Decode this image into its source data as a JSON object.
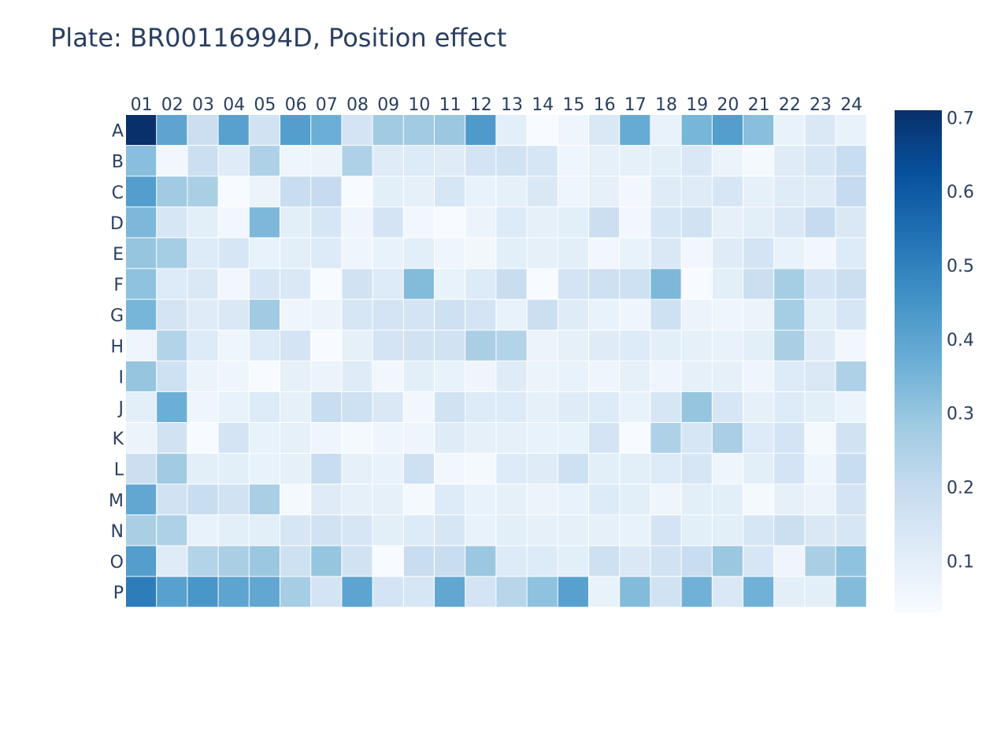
{
  "chart_data": {
    "type": "heatmap",
    "title": "Plate: BR00116994D, Position effect",
    "xlabel": "",
    "ylabel": "",
    "columns": [
      "01",
      "02",
      "03",
      "04",
      "05",
      "06",
      "07",
      "08",
      "09",
      "10",
      "11",
      "12",
      "13",
      "14",
      "15",
      "16",
      "17",
      "18",
      "19",
      "20",
      "21",
      "22",
      "23",
      "24"
    ],
    "rows": [
      "A",
      "B",
      "C",
      "D",
      "E",
      "F",
      "G",
      "H",
      "I",
      "J",
      "K",
      "L",
      "M",
      "N",
      "O",
      "P"
    ],
    "values": [
      [
        0.71,
        0.4,
        0.18,
        0.41,
        0.16,
        0.42,
        0.37,
        0.15,
        0.28,
        0.28,
        0.29,
        0.43,
        0.1,
        0.03,
        0.06,
        0.13,
        0.38,
        0.08,
        0.35,
        0.42,
        0.32,
        0.08,
        0.13,
        0.08
      ],
      [
        0.32,
        0.05,
        0.18,
        0.11,
        0.25,
        0.06,
        0.07,
        0.25,
        0.11,
        0.12,
        0.11,
        0.15,
        0.16,
        0.14,
        0.06,
        0.09,
        0.09,
        0.1,
        0.13,
        0.07,
        0.04,
        0.11,
        0.14,
        0.19
      ],
      [
        0.42,
        0.28,
        0.26,
        0.03,
        0.07,
        0.19,
        0.2,
        0.03,
        0.1,
        0.09,
        0.14,
        0.08,
        0.09,
        0.13,
        0.06,
        0.09,
        0.05,
        0.11,
        0.11,
        0.14,
        0.09,
        0.11,
        0.11,
        0.2
      ],
      [
        0.34,
        0.14,
        0.1,
        0.05,
        0.34,
        0.1,
        0.14,
        0.06,
        0.15,
        0.05,
        0.03,
        0.07,
        0.12,
        0.09,
        0.1,
        0.18,
        0.05,
        0.14,
        0.16,
        0.09,
        0.1,
        0.13,
        0.2,
        0.13
      ],
      [
        0.3,
        0.27,
        0.12,
        0.14,
        0.08,
        0.1,
        0.12,
        0.06,
        0.08,
        0.1,
        0.06,
        0.05,
        0.1,
        0.09,
        0.1,
        0.05,
        0.08,
        0.13,
        0.05,
        0.11,
        0.15,
        0.08,
        0.05,
        0.12
      ],
      [
        0.31,
        0.12,
        0.13,
        0.05,
        0.14,
        0.13,
        0.03,
        0.16,
        0.12,
        0.33,
        0.08,
        0.12,
        0.19,
        0.03,
        0.15,
        0.17,
        0.17,
        0.34,
        0.03,
        0.1,
        0.18,
        0.27,
        0.15,
        0.18
      ],
      [
        0.35,
        0.15,
        0.11,
        0.13,
        0.28,
        0.06,
        0.07,
        0.14,
        0.15,
        0.15,
        0.17,
        0.15,
        0.08,
        0.18,
        0.11,
        0.08,
        0.06,
        0.17,
        0.07,
        0.06,
        0.07,
        0.27,
        0.1,
        0.14
      ],
      [
        0.06,
        0.24,
        0.12,
        0.06,
        0.12,
        0.15,
        0.03,
        0.09,
        0.15,
        0.16,
        0.16,
        0.26,
        0.24,
        0.07,
        0.09,
        0.11,
        0.12,
        0.1,
        0.09,
        0.08,
        0.1,
        0.26,
        0.11,
        0.05
      ],
      [
        0.3,
        0.17,
        0.07,
        0.06,
        0.03,
        0.09,
        0.07,
        0.11,
        0.05,
        0.1,
        0.08,
        0.06,
        0.11,
        0.07,
        0.08,
        0.06,
        0.09,
        0.06,
        0.09,
        0.09,
        0.06,
        0.12,
        0.13,
        0.25
      ],
      [
        0.1,
        0.37,
        0.06,
        0.08,
        0.12,
        0.09,
        0.19,
        0.17,
        0.13,
        0.05,
        0.16,
        0.12,
        0.12,
        0.09,
        0.11,
        0.12,
        0.08,
        0.14,
        0.3,
        0.14,
        0.09,
        0.12,
        0.1,
        0.07
      ],
      [
        0.07,
        0.16,
        0.03,
        0.15,
        0.08,
        0.09,
        0.06,
        0.04,
        0.06,
        0.06,
        0.11,
        0.09,
        0.09,
        0.08,
        0.08,
        0.15,
        0.03,
        0.25,
        0.14,
        0.26,
        0.12,
        0.15,
        0.04,
        0.16
      ],
      [
        0.18,
        0.28,
        0.1,
        0.1,
        0.08,
        0.09,
        0.19,
        0.09,
        0.08,
        0.17,
        0.05,
        0.04,
        0.12,
        0.11,
        0.17,
        0.1,
        0.1,
        0.12,
        0.14,
        0.06,
        0.1,
        0.15,
        0.06,
        0.19
      ],
      [
        0.39,
        0.16,
        0.19,
        0.16,
        0.26,
        0.04,
        0.11,
        0.09,
        0.09,
        0.04,
        0.12,
        0.08,
        0.09,
        0.07,
        0.08,
        0.12,
        0.1,
        0.06,
        0.1,
        0.1,
        0.04,
        0.09,
        0.07,
        0.15
      ],
      [
        0.26,
        0.25,
        0.08,
        0.1,
        0.1,
        0.14,
        0.16,
        0.14,
        0.1,
        0.12,
        0.14,
        0.08,
        0.1,
        0.09,
        0.09,
        0.09,
        0.08,
        0.15,
        0.1,
        0.1,
        0.14,
        0.18,
        0.13,
        0.14
      ],
      [
        0.42,
        0.11,
        0.24,
        0.26,
        0.29,
        0.17,
        0.3,
        0.16,
        0.03,
        0.19,
        0.19,
        0.29,
        0.12,
        0.12,
        0.1,
        0.17,
        0.13,
        0.16,
        0.19,
        0.29,
        0.14,
        0.06,
        0.26,
        0.31
      ],
      [
        0.51,
        0.41,
        0.44,
        0.4,
        0.39,
        0.27,
        0.15,
        0.4,
        0.15,
        0.14,
        0.39,
        0.15,
        0.23,
        0.31,
        0.41,
        0.08,
        0.33,
        0.16,
        0.36,
        0.13,
        0.36,
        0.1,
        0.1,
        0.33
      ]
    ],
    "colorscale": "Blues",
    "zlim": [
      0.03,
      0.71
    ],
    "colorbar_ticks": [
      "0.1",
      "0.2",
      "0.3",
      "0.4",
      "0.5",
      "0.6",
      "0.7"
    ],
    "colorbar_tick_values": [
      0.1,
      0.2,
      0.3,
      0.4,
      0.5,
      0.6,
      0.7
    ],
    "grid": false,
    "x_axis_position": "top",
    "y_axis_order": "top-to-bottom"
  }
}
